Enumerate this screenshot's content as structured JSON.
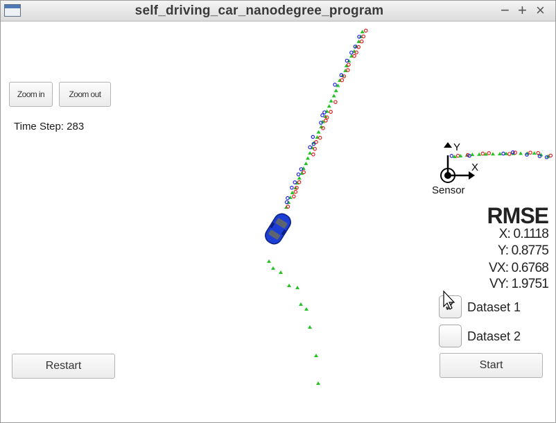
{
  "window": {
    "title": "self_driving_car_nanodegree_program",
    "controls": [
      "−",
      "+",
      "×"
    ]
  },
  "toolbar": {
    "zoom_in_label": "Zoom in",
    "zoom_out_label": "Zoom out"
  },
  "timestep": {
    "text": "Time Step: 283"
  },
  "rmse": {
    "title": "RMSE",
    "x": "X: 0.1118",
    "y": "Y: 0.8775",
    "vx": "VX: 0.6768",
    "vy": "VY: 1.9751"
  },
  "datasets": [
    {
      "label": "Dataset 1",
      "checked": true
    },
    {
      "label": "Dataset 2",
      "checked": false
    }
  ],
  "buttons": {
    "restart_label": "Restart",
    "start_label": "Start"
  },
  "sensor": {
    "label": "Sensor",
    "axis_y": "Y",
    "axis_x": "X"
  },
  "colors": {
    "ground_truth": "#22c322",
    "lidar": "#e02020",
    "radar": "#2020e0",
    "car": "#1133cc"
  }
}
